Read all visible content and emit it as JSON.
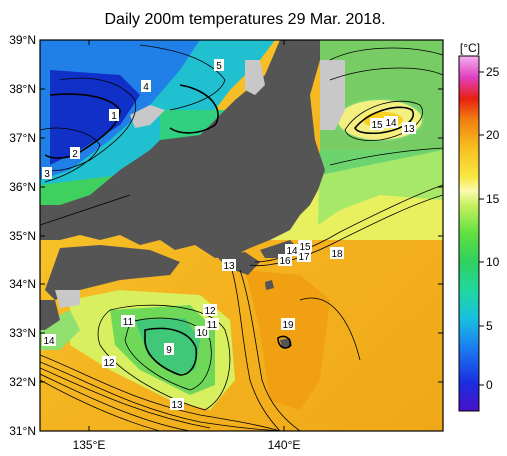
{
  "title": "Daily 200m temperatures 29 Mar. 2018.",
  "colorbar": {
    "unit": "[°C]",
    "ticks": [
      "25",
      "20",
      "15",
      "10",
      "5",
      "0"
    ],
    "tick_values": [
      25,
      20,
      15,
      10,
      5,
      0
    ],
    "range": [
      -2,
      26
    ]
  },
  "axes": {
    "lat_labels": [
      "39°N",
      "38°N",
      "37°N",
      "36°N",
      "35°N",
      "34°N",
      "33°N",
      "32°N",
      "31°N"
    ],
    "lon_labels": [
      "135°E",
      "140°E"
    ]
  },
  "contour_labels": [
    {
      "text": "1"
    },
    {
      "text": "2"
    },
    {
      "text": "3"
    },
    {
      "text": "4"
    },
    {
      "text": "5"
    },
    {
      "text": "15"
    },
    {
      "text": "14"
    },
    {
      "text": "13"
    },
    {
      "text": "14"
    },
    {
      "text": "15"
    },
    {
      "text": "16"
    },
    {
      "text": "17"
    },
    {
      "text": "18"
    },
    {
      "text": "13"
    },
    {
      "text": "12"
    },
    {
      "text": "11"
    },
    {
      "text": "10"
    },
    {
      "text": "11"
    },
    {
      "text": "9"
    },
    {
      "text": "14"
    },
    {
      "text": "12"
    },
    {
      "text": "13"
    },
    {
      "text": "19"
    }
  ],
  "colors": {
    "land": "#555555",
    "cold_deep": "#2233cc",
    "warm": "#f5b020",
    "map_border": "#000000"
  }
}
